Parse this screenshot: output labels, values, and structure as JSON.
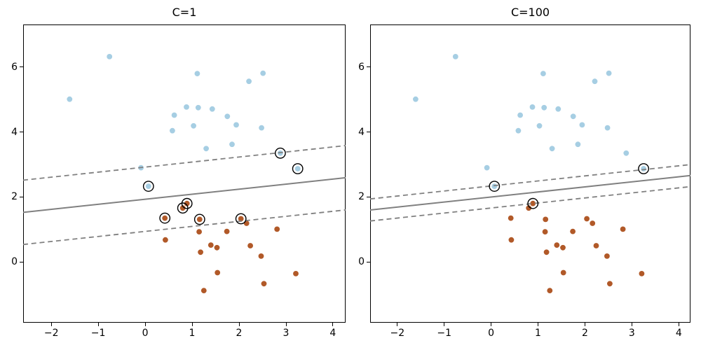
{
  "figure_type": "matplotlib-svm-figure",
  "colors": {
    "class0_fill": "#a6cee3",
    "class1_fill": "#b15928",
    "boundary_gray": "#808080",
    "support_vector_edge": "#000000",
    "axis_color": "#000000",
    "background": "#ffffff"
  },
  "chart_data": [
    {
      "id": "c1",
      "type": "scatter",
      "title": "C=1",
      "xlabel": "",
      "ylabel": "",
      "grid": false,
      "legend": null,
      "xlim": [
        -2.6,
        4.27
      ],
      "ylim": [
        -1.87,
        7.31
      ],
      "xticks": [
        -2,
        -1,
        0,
        1,
        2,
        3,
        4
      ],
      "yticks": [
        0,
        2,
        4,
        6
      ],
      "series": [
        {
          "name": "class-0-blue",
          "color": "#a6cee3",
          "points": [
            [
              -0.76,
              6.32
            ],
            [
              -1.61,
              5.01
            ],
            [
              1.11,
              5.8
            ],
            [
              2.21,
              5.56
            ],
            [
              2.51,
              5.81
            ],
            [
              0.62,
              4.52
            ],
            [
              0.88,
              4.77
            ],
            [
              1.13,
              4.75
            ],
            [
              1.43,
              4.71
            ],
            [
              1.75,
              4.48
            ],
            [
              0.58,
              4.04
            ],
            [
              1.03,
              4.19
            ],
            [
              1.94,
              4.22
            ],
            [
              2.48,
              4.13
            ],
            [
              1.3,
              3.49
            ],
            [
              1.85,
              3.62
            ],
            [
              -0.09,
              2.9
            ],
            [
              2.88,
              3.35
            ],
            [
              3.25,
              2.87
            ],
            [
              0.07,
              2.33
            ]
          ]
        },
        {
          "name": "class-1-orange",
          "color": "#b15928",
          "points": [
            [
              0.42,
              1.35
            ],
            [
              0.8,
              1.66
            ],
            [
              0.89,
              1.8
            ],
            [
              1.16,
              1.31
            ],
            [
              2.04,
              1.33
            ],
            [
              2.16,
              1.19
            ],
            [
              1.15,
              0.93
            ],
            [
              1.74,
              0.94
            ],
            [
              2.81,
              1.01
            ],
            [
              0.43,
              0.68
            ],
            [
              1.4,
              0.52
            ],
            [
              1.53,
              0.44
            ],
            [
              1.18,
              0.3
            ],
            [
              2.24,
              0.5
            ],
            [
              2.47,
              0.18
            ],
            [
              1.54,
              -0.33
            ],
            [
              3.21,
              -0.36
            ],
            [
              2.53,
              -0.67
            ],
            [
              1.25,
              -0.88
            ]
          ]
        }
      ],
      "support_vectors": [
        [
          0.07,
          2.33
        ],
        [
          2.88,
          3.35
        ],
        [
          3.25,
          2.87
        ],
        [
          0.42,
          1.35
        ],
        [
          0.8,
          1.66
        ],
        [
          0.89,
          1.8
        ],
        [
          1.16,
          1.31
        ],
        [
          2.04,
          1.33
        ]
      ],
      "lines": [
        {
          "name": "decision_boundary",
          "slope": 0.155,
          "intercept": 1.93,
          "style": "solid",
          "color": "#808080"
        },
        {
          "name": "margin_upper",
          "slope": 0.155,
          "intercept": 2.92,
          "style": "dashed",
          "color": "#808080"
        },
        {
          "name": "margin_lower",
          "slope": 0.155,
          "intercept": 0.94,
          "style": "dashed",
          "color": "#808080"
        }
      ]
    },
    {
      "id": "c100",
      "type": "scatter",
      "title": "C=100",
      "xlabel": "",
      "ylabel": "",
      "grid": false,
      "legend": null,
      "xlim": [
        -2.58,
        4.25
      ],
      "ylim": [
        -1.87,
        7.31
      ],
      "xticks": [
        -2,
        -1,
        0,
        1,
        2,
        3,
        4
      ],
      "yticks": [
        0,
        2,
        4,
        6
      ],
      "series": [
        {
          "name": "class-0-blue",
          "color": "#a6cee3",
          "points": [
            [
              -0.76,
              6.32
            ],
            [
              -1.61,
              5.01
            ],
            [
              1.11,
              5.8
            ],
            [
              2.21,
              5.56
            ],
            [
              2.51,
              5.81
            ],
            [
              0.62,
              4.52
            ],
            [
              0.88,
              4.77
            ],
            [
              1.13,
              4.75
            ],
            [
              1.43,
              4.71
            ],
            [
              1.75,
              4.48
            ],
            [
              0.58,
              4.04
            ],
            [
              1.03,
              4.19
            ],
            [
              1.94,
              4.22
            ],
            [
              2.48,
              4.13
            ],
            [
              1.3,
              3.49
            ],
            [
              1.85,
              3.62
            ],
            [
              -0.09,
              2.9
            ],
            [
              2.88,
              3.35
            ],
            [
              3.25,
              2.87
            ],
            [
              0.07,
              2.33
            ]
          ]
        },
        {
          "name": "class-1-orange",
          "color": "#b15928",
          "points": [
            [
              0.42,
              1.35
            ],
            [
              0.8,
              1.66
            ],
            [
              0.89,
              1.8
            ],
            [
              1.16,
              1.31
            ],
            [
              2.04,
              1.33
            ],
            [
              2.16,
              1.19
            ],
            [
              1.15,
              0.93
            ],
            [
              1.74,
              0.94
            ],
            [
              2.81,
              1.01
            ],
            [
              0.43,
              0.68
            ],
            [
              1.4,
              0.52
            ],
            [
              1.53,
              0.44
            ],
            [
              1.18,
              0.3
            ],
            [
              2.24,
              0.5
            ],
            [
              2.47,
              0.18
            ],
            [
              1.54,
              -0.33
            ],
            [
              3.21,
              -0.36
            ],
            [
              2.53,
              -0.67
            ],
            [
              1.25,
              -0.88
            ]
          ]
        }
      ],
      "support_vectors": [
        [
          0.07,
          2.33
        ],
        [
          3.25,
          2.87
        ],
        [
          0.89,
          1.8
        ]
      ],
      "lines": [
        {
          "name": "decision_boundary",
          "slope": 0.155,
          "intercept": 2.0,
          "style": "solid",
          "color": "#808080"
        },
        {
          "name": "margin_upper",
          "slope": 0.155,
          "intercept": 2.34,
          "style": "dashed",
          "color": "#808080"
        },
        {
          "name": "margin_lower",
          "slope": 0.155,
          "intercept": 1.66,
          "style": "dashed",
          "color": "#808080"
        }
      ]
    }
  ]
}
